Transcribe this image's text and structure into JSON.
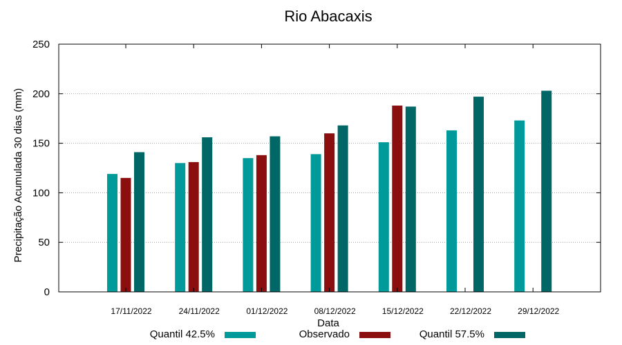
{
  "chart_data": {
    "type": "bar",
    "title": "Rio Abacaxis",
    "xlabel": "Data",
    "ylabel": "Precipitação Acumulada 30 dias (mm)",
    "ylim": [
      0,
      250
    ],
    "yticks": [
      0,
      50,
      100,
      150,
      200,
      250
    ],
    "grid": true,
    "legend_position": "bottom",
    "categories": [
      "17/11/2022",
      "24/11/2022",
      "01/12/2022",
      "08/12/2022",
      "15/12/2022",
      "22/12/2022",
      "29/12/2022"
    ],
    "series": [
      {
        "name": "Quantil 42.5%",
        "color": "#009a9a",
        "values": [
          119,
          130,
          135,
          139,
          151,
          163,
          173
        ]
      },
      {
        "name": "Observado",
        "color": "#8b0f0f",
        "values": [
          115,
          131,
          138,
          160,
          188,
          null,
          null
        ]
      },
      {
        "name": "Quantil 57.5%",
        "color": "#006666",
        "values": [
          141,
          156,
          157,
          168,
          187,
          197,
          203
        ]
      }
    ]
  }
}
